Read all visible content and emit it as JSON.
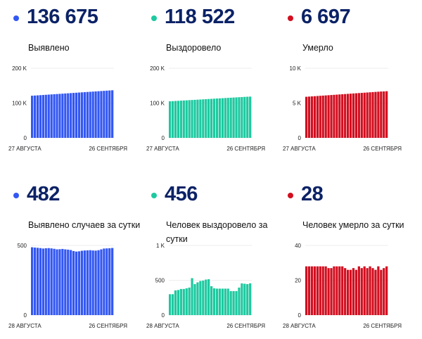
{
  "colors": {
    "blue": "#3357f3",
    "green": "#1dc9a0",
    "red": "#d20e1f"
  },
  "chart_data": [
    {
      "type": "bar",
      "title": "136 675",
      "label": "Выявлено",
      "color": "blue",
      "yticks": [
        "0",
        "100 K",
        "200 K"
      ],
      "ylim": [
        0,
        200000
      ],
      "xlabels": [
        "27 АВГУСТА",
        "26 СЕНТЯБРЯ"
      ],
      "values": [
        121000,
        121540,
        122080,
        122620,
        123160,
        123700,
        124240,
        124780,
        125320,
        125860,
        126400,
        126940,
        127480,
        128020,
        128560,
        129100,
        129640,
        130180,
        130720,
        131260,
        131800,
        132340,
        132880,
        133420,
        133960,
        134500,
        135040,
        135580,
        136120,
        136675
      ]
    },
    {
      "type": "bar",
      "title": "118 522",
      "label": "Выздоровело",
      "color": "green",
      "yticks": [
        "0",
        "100 K",
        "200 K"
      ],
      "ylim": [
        0,
        200000
      ],
      "xlabels": [
        "27 АВГУСТА",
        "26 СЕНТЯБРЯ"
      ],
      "values": [
        105000,
        105470,
        105940,
        106410,
        106880,
        107350,
        107820,
        108290,
        108760,
        109230,
        109700,
        110170,
        110640,
        111110,
        111580,
        112050,
        112520,
        112990,
        113460,
        113930,
        114400,
        114870,
        115340,
        115810,
        116280,
        116750,
        117220,
        117690,
        118100,
        118522
      ]
    },
    {
      "type": "bar",
      "title": "6 697",
      "label": "Умерло",
      "color": "red",
      "yticks": [
        "0",
        "5 K",
        "10 K"
      ],
      "ylim": [
        0,
        10000
      ],
      "xlabels": [
        "27 АВГУСТА",
        "26 СЕНТЯБРЯ"
      ],
      "values": [
        5900,
        5928,
        5956,
        5984,
        6012,
        6040,
        6068,
        6096,
        6124,
        6152,
        6180,
        6208,
        6236,
        6264,
        6292,
        6320,
        6348,
        6376,
        6404,
        6432,
        6460,
        6488,
        6516,
        6544,
        6572,
        6600,
        6628,
        6656,
        6670,
        6697
      ]
    },
    {
      "type": "bar",
      "title": "482",
      "label": "Выявлено случаев за сутки",
      "color": "blue",
      "yticks": [
        "0",
        "500"
      ],
      "ylim": [
        0,
        500
      ],
      "xlabels": [
        "28 АВГУСТА",
        "26 СЕНТЯБРЯ"
      ],
      "values": [
        487,
        485,
        483,
        481,
        478,
        480,
        481,
        479,
        476,
        472,
        473,
        475,
        472,
        470,
        467,
        460,
        456,
        458,
        462,
        464,
        465,
        466,
        464,
        463,
        466,
        472,
        478,
        479,
        480,
        482
      ]
    },
    {
      "type": "bar",
      "title": "456",
      "label": "Человек выздоровело за сутки",
      "color": "green",
      "yticks": [
        "0",
        "500",
        "1 K"
      ],
      "ylim": [
        0,
        1000
      ],
      "xlabels": [
        "28 АВГУСТА",
        "26 СЕНТЯБРЯ"
      ],
      "values": [
        300,
        300,
        355,
        360,
        375,
        375,
        385,
        395,
        530,
        445,
        470,
        490,
        495,
        510,
        515,
        415,
        385,
        380,
        380,
        380,
        380,
        380,
        345,
        345,
        345,
        395,
        455,
        450,
        445,
        456
      ]
    },
    {
      "type": "bar",
      "title": "28",
      "label": "Человек умерло за сутки",
      "color": "red",
      "yticks": [
        "0",
        "20",
        "40"
      ],
      "ylim": [
        0,
        40
      ],
      "xlabels": [
        "28 АВГУСТА",
        "26 СЕНТЯБРЯ"
      ],
      "values": [
        28,
        28,
        28,
        28,
        28,
        28,
        28,
        28,
        27,
        27,
        28,
        28,
        28,
        28,
        27,
        26,
        26,
        27,
        26,
        28,
        27,
        28,
        27,
        28,
        27,
        26,
        28,
        26,
        27,
        28
      ]
    }
  ]
}
